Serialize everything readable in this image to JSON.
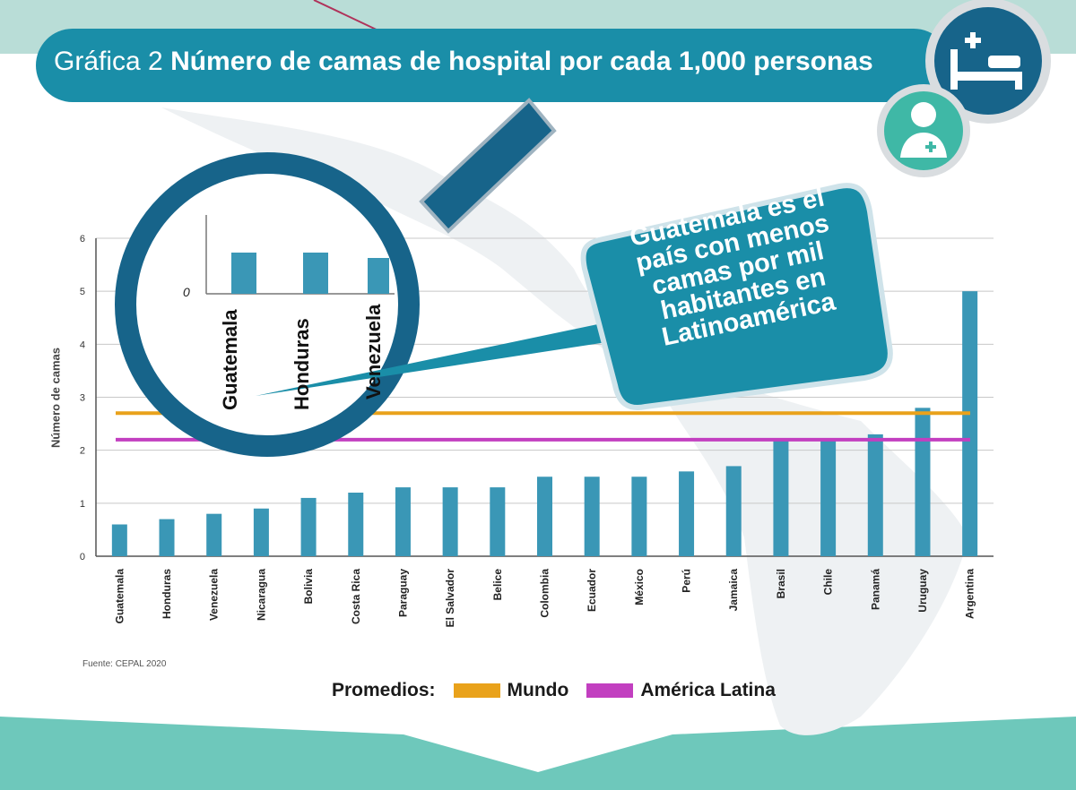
{
  "header": {
    "title_prefix": "Gráfica 2",
    "title_main": "Número de camas de hospital por cada 1,000 personas"
  },
  "callout": {
    "line1": "Guatemala es el",
    "line2": "país con menos",
    "line3": "camas por mil",
    "line4": "habitantes en",
    "line5": "Latinoamérica"
  },
  "magnifier": {
    "zero_label": "0",
    "labels": [
      "Guatemala",
      "Honduras",
      "Venezuela"
    ]
  },
  "source": "Fuente: CEPAL 2020",
  "legend": {
    "title": "Promedios:",
    "world": "Mundo",
    "latam": "América Latina"
  },
  "colors": {
    "bar": "#3a97b6",
    "world": "#e9a21b",
    "latam": "#c23fc0",
    "title_bg": "#1a8ea8",
    "icon_dark": "#17648a",
    "icon_teal": "#3fb8a6",
    "band": "#6ec8bb"
  },
  "chart_data": {
    "type": "bar",
    "title": "Número de camas de hospital por cada 1,000 personas",
    "xlabel": "",
    "ylabel": "Número de camas",
    "ylim": [
      0,
      6
    ],
    "yticks": [
      0,
      1,
      2,
      3,
      4,
      5,
      6
    ],
    "grid": true,
    "categories": [
      "Guatemala",
      "Honduras",
      "Venezuela",
      "Nicaragua",
      "Bolivia",
      "Costa Rica",
      "Paraguay",
      "El Salvador",
      "Belice",
      "Colombia",
      "Ecuador",
      "México",
      "Perú",
      "Jamaica",
      "Brasil",
      "Chile",
      "Panamá",
      "Uruguay",
      "Argentina"
    ],
    "values": [
      0.6,
      0.7,
      0.8,
      0.9,
      1.1,
      1.2,
      1.3,
      1.3,
      1.3,
      1.5,
      1.5,
      1.5,
      1.6,
      1.7,
      2.2,
      2.2,
      2.3,
      2.8,
      5.0
    ],
    "reference_lines": [
      {
        "name": "Mundo",
        "value": 2.7
      },
      {
        "name": "América Latina",
        "value": 2.2
      }
    ]
  }
}
